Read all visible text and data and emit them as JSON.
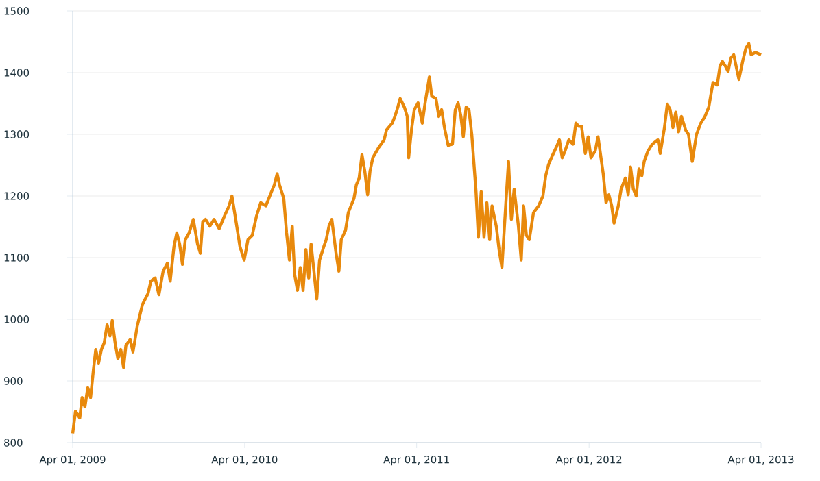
{
  "chart_data": {
    "type": "line",
    "x": [
      "2009-04-01",
      "2009-04-07",
      "2009-04-16",
      "2009-04-21",
      "2009-04-27",
      "2009-05-03",
      "2009-05-09",
      "2009-05-15",
      "2009-05-20",
      "2009-05-26",
      "2009-06-01",
      "2009-06-07",
      "2009-06-13",
      "2009-06-19",
      "2009-06-24",
      "2009-06-30",
      "2009-07-06",
      "2009-07-12",
      "2009-07-18",
      "2009-07-23",
      "2009-08-01",
      "2009-08-07",
      "2009-08-16",
      "2009-08-27",
      "2009-09-08",
      "2009-09-14",
      "2009-09-23",
      "2009-10-01",
      "2009-10-10",
      "2009-10-19",
      "2009-10-25",
      "2009-11-02",
      "2009-11-08",
      "2009-11-14",
      "2009-11-20",
      "2009-11-26",
      "2009-12-04",
      "2009-12-13",
      "2009-12-22",
      "2009-12-28",
      "2010-01-02",
      "2010-01-08",
      "2010-01-17",
      "2010-01-26",
      "2010-02-06",
      "2010-02-18",
      "2010-02-27",
      "2010-03-05",
      "2010-03-13",
      "2010-03-22",
      "2010-03-31",
      "2010-04-08",
      "2010-04-17",
      "2010-04-26",
      "2010-05-05",
      "2010-05-16",
      "2010-05-28",
      "2010-06-03",
      "2010-06-09",
      "2010-06-14",
      "2010-06-23",
      "2010-06-29",
      "2010-07-05",
      "2010-07-11",
      "2010-07-16",
      "2010-07-22",
      "2010-07-28",
      "2010-08-03",
      "2010-08-09",
      "2010-08-15",
      "2010-08-20",
      "2010-08-26",
      "2010-09-01",
      "2010-09-07",
      "2010-09-16",
      "2010-09-21",
      "2010-09-27",
      "2010-10-03",
      "2010-10-12",
      "2010-10-18",
      "2010-10-23",
      "2010-11-01",
      "2010-11-07",
      "2010-11-19",
      "2010-11-24",
      "2010-11-30",
      "2010-12-06",
      "2010-12-12",
      "2010-12-18",
      "2010-12-23",
      "2010-12-29",
      "2011-01-10",
      "2011-01-22",
      "2011-01-27",
      "2011-02-08",
      "2011-02-14",
      "2011-02-20",
      "2011-02-25",
      "2011-03-06",
      "2011-03-12",
      "2011-03-15",
      "2011-03-21",
      "2011-03-27",
      "2011-04-04",
      "2011-04-13",
      "2011-04-19",
      "2011-04-28",
      "2011-05-03",
      "2011-05-12",
      "2011-05-18",
      "2011-05-24",
      "2011-05-30",
      "2011-06-07",
      "2011-06-16",
      "2011-06-22",
      "2011-06-28",
      "2011-07-04",
      "2011-07-09",
      "2011-07-15",
      "2011-07-21",
      "2011-07-27",
      "2011-08-05",
      "2011-08-10",
      "2011-08-16",
      "2011-08-22",
      "2011-08-28",
      "2011-09-03",
      "2011-09-08",
      "2011-09-17",
      "2011-09-23",
      "2011-09-29",
      "2011-10-08",
      "2011-10-13",
      "2011-10-19",
      "2011-10-25",
      "2011-11-03",
      "2011-11-09",
      "2011-11-14",
      "2011-11-20",
      "2011-11-26",
      "2011-12-05",
      "2011-12-16",
      "2011-12-25",
      "2011-12-31",
      "2012-01-06",
      "2012-01-15",
      "2012-01-23",
      "2012-01-29",
      "2012-02-04",
      "2012-02-10",
      "2012-02-18",
      "2012-02-27",
      "2012-03-04",
      "2012-03-10",
      "2012-03-16",
      "2012-03-24",
      "2012-03-30",
      "2012-04-05",
      "2012-04-14",
      "2012-04-20",
      "2012-05-01",
      "2012-05-07",
      "2012-05-13",
      "2012-05-19",
      "2012-05-24",
      "2012-06-02",
      "2012-06-08",
      "2012-06-17",
      "2012-06-23",
      "2012-06-28",
      "2012-07-04",
      "2012-07-10",
      "2012-07-16",
      "2012-07-22",
      "2012-07-27",
      "2012-08-04",
      "2012-08-13",
      "2012-08-25",
      "2012-08-30",
      "2012-09-08",
      "2012-09-14",
      "2012-09-20",
      "2012-09-26",
      "2012-10-02",
      "2012-10-08",
      "2012-10-14",
      "2012-10-23",
      "2012-10-29",
      "2012-11-06",
      "2012-11-15",
      "2012-11-24",
      "2012-12-03",
      "2012-12-11",
      "2012-12-20",
      "2012-12-29",
      "2013-01-04",
      "2013-01-09",
      "2013-01-15",
      "2013-01-21",
      "2013-01-27",
      "2013-02-02",
      "2013-02-07",
      "2013-02-13",
      "2013-02-22",
      "2013-02-28",
      "2013-03-06",
      "2013-03-11",
      "2013-03-20",
      "2013-04-01"
    ],
    "series": [
      {
        "color": "#e8890c",
        "values": [
          815,
          851,
          840,
          873,
          858,
          889,
          873,
          918,
          951,
          929,
          951,
          962,
          991,
          973,
          998,
          962,
          936,
          951,
          922,
          958,
          967,
          947,
          989,
          1024,
          1042,
          1062,
          1067,
          1040,
          1078,
          1091,
          1062,
          1118,
          1140,
          1122,
          1089,
          1129,
          1140,
          1162,
          1122,
          1107,
          1158,
          1162,
          1151,
          1162,
          1147,
          1169,
          1184,
          1200,
          1162,
          1118,
          1096,
          1129,
          1136,
          1167,
          1189,
          1184,
          1207,
          1218,
          1236,
          1218,
          1196,
          1140,
          1096,
          1151,
          1073,
          1047,
          1084,
          1047,
          1113,
          1067,
          1122,
          1078,
          1033,
          1096,
          1118,
          1129,
          1151,
          1162,
          1107,
          1078,
          1129,
          1144,
          1173,
          1196,
          1218,
          1229,
          1267,
          1240,
          1202,
          1240,
          1262,
          1278,
          1291,
          1307,
          1318,
          1329,
          1344,
          1358,
          1344,
          1329,
          1262,
          1307,
          1340,
          1351,
          1318,
          1351,
          1393,
          1362,
          1358,
          1329,
          1340,
          1311,
          1282,
          1284,
          1340,
          1351,
          1329,
          1296,
          1344,
          1340,
          1300,
          1207,
          1133,
          1207,
          1133,
          1189,
          1129,
          1184,
          1151,
          1113,
          1084,
          1196,
          1256,
          1162,
          1211,
          1151,
          1096,
          1184,
          1136,
          1129,
          1173,
          1184,
          1200,
          1233,
          1251,
          1267,
          1280,
          1291,
          1262,
          1273,
          1291,
          1284,
          1318,
          1313,
          1313,
          1269,
          1296,
          1262,
          1273,
          1296,
          1236,
          1189,
          1202,
          1184,
          1156,
          1184,
          1211,
          1229,
          1202,
          1247,
          1211,
          1200,
          1244,
          1233,
          1256,
          1273,
          1284,
          1291,
          1269,
          1311,
          1349,
          1340,
          1311,
          1336,
          1304,
          1329,
          1307,
          1300,
          1256,
          1300,
          1318,
          1329,
          1344,
          1384,
          1380,
          1411,
          1418,
          1411,
          1402,
          1424,
          1429,
          1411,
          1389,
          1422,
          1440,
          1447,
          1429,
          1433,
          1429
        ]
      }
    ],
    "xlim": [
      "2009-04-01",
      "2013-04-01"
    ],
    "xticks": [
      {
        "value": "2009-04-01",
        "label": "Apr 01, 2009"
      },
      {
        "value": "2010-04-01",
        "label": "Apr 01, 2010"
      },
      {
        "value": "2011-04-01",
        "label": "Apr 01, 2011"
      },
      {
        "value": "2012-04-01",
        "label": "Apr 01, 2012"
      },
      {
        "value": "2013-04-01",
        "label": "Apr 01, 2013"
      }
    ],
    "ylim": [
      800,
      1500
    ],
    "yticks": [
      800,
      900,
      1000,
      1100,
      1200,
      1300,
      1400,
      1500
    ],
    "grid": "y",
    "marker": "none",
    "line_style": "solid"
  }
}
